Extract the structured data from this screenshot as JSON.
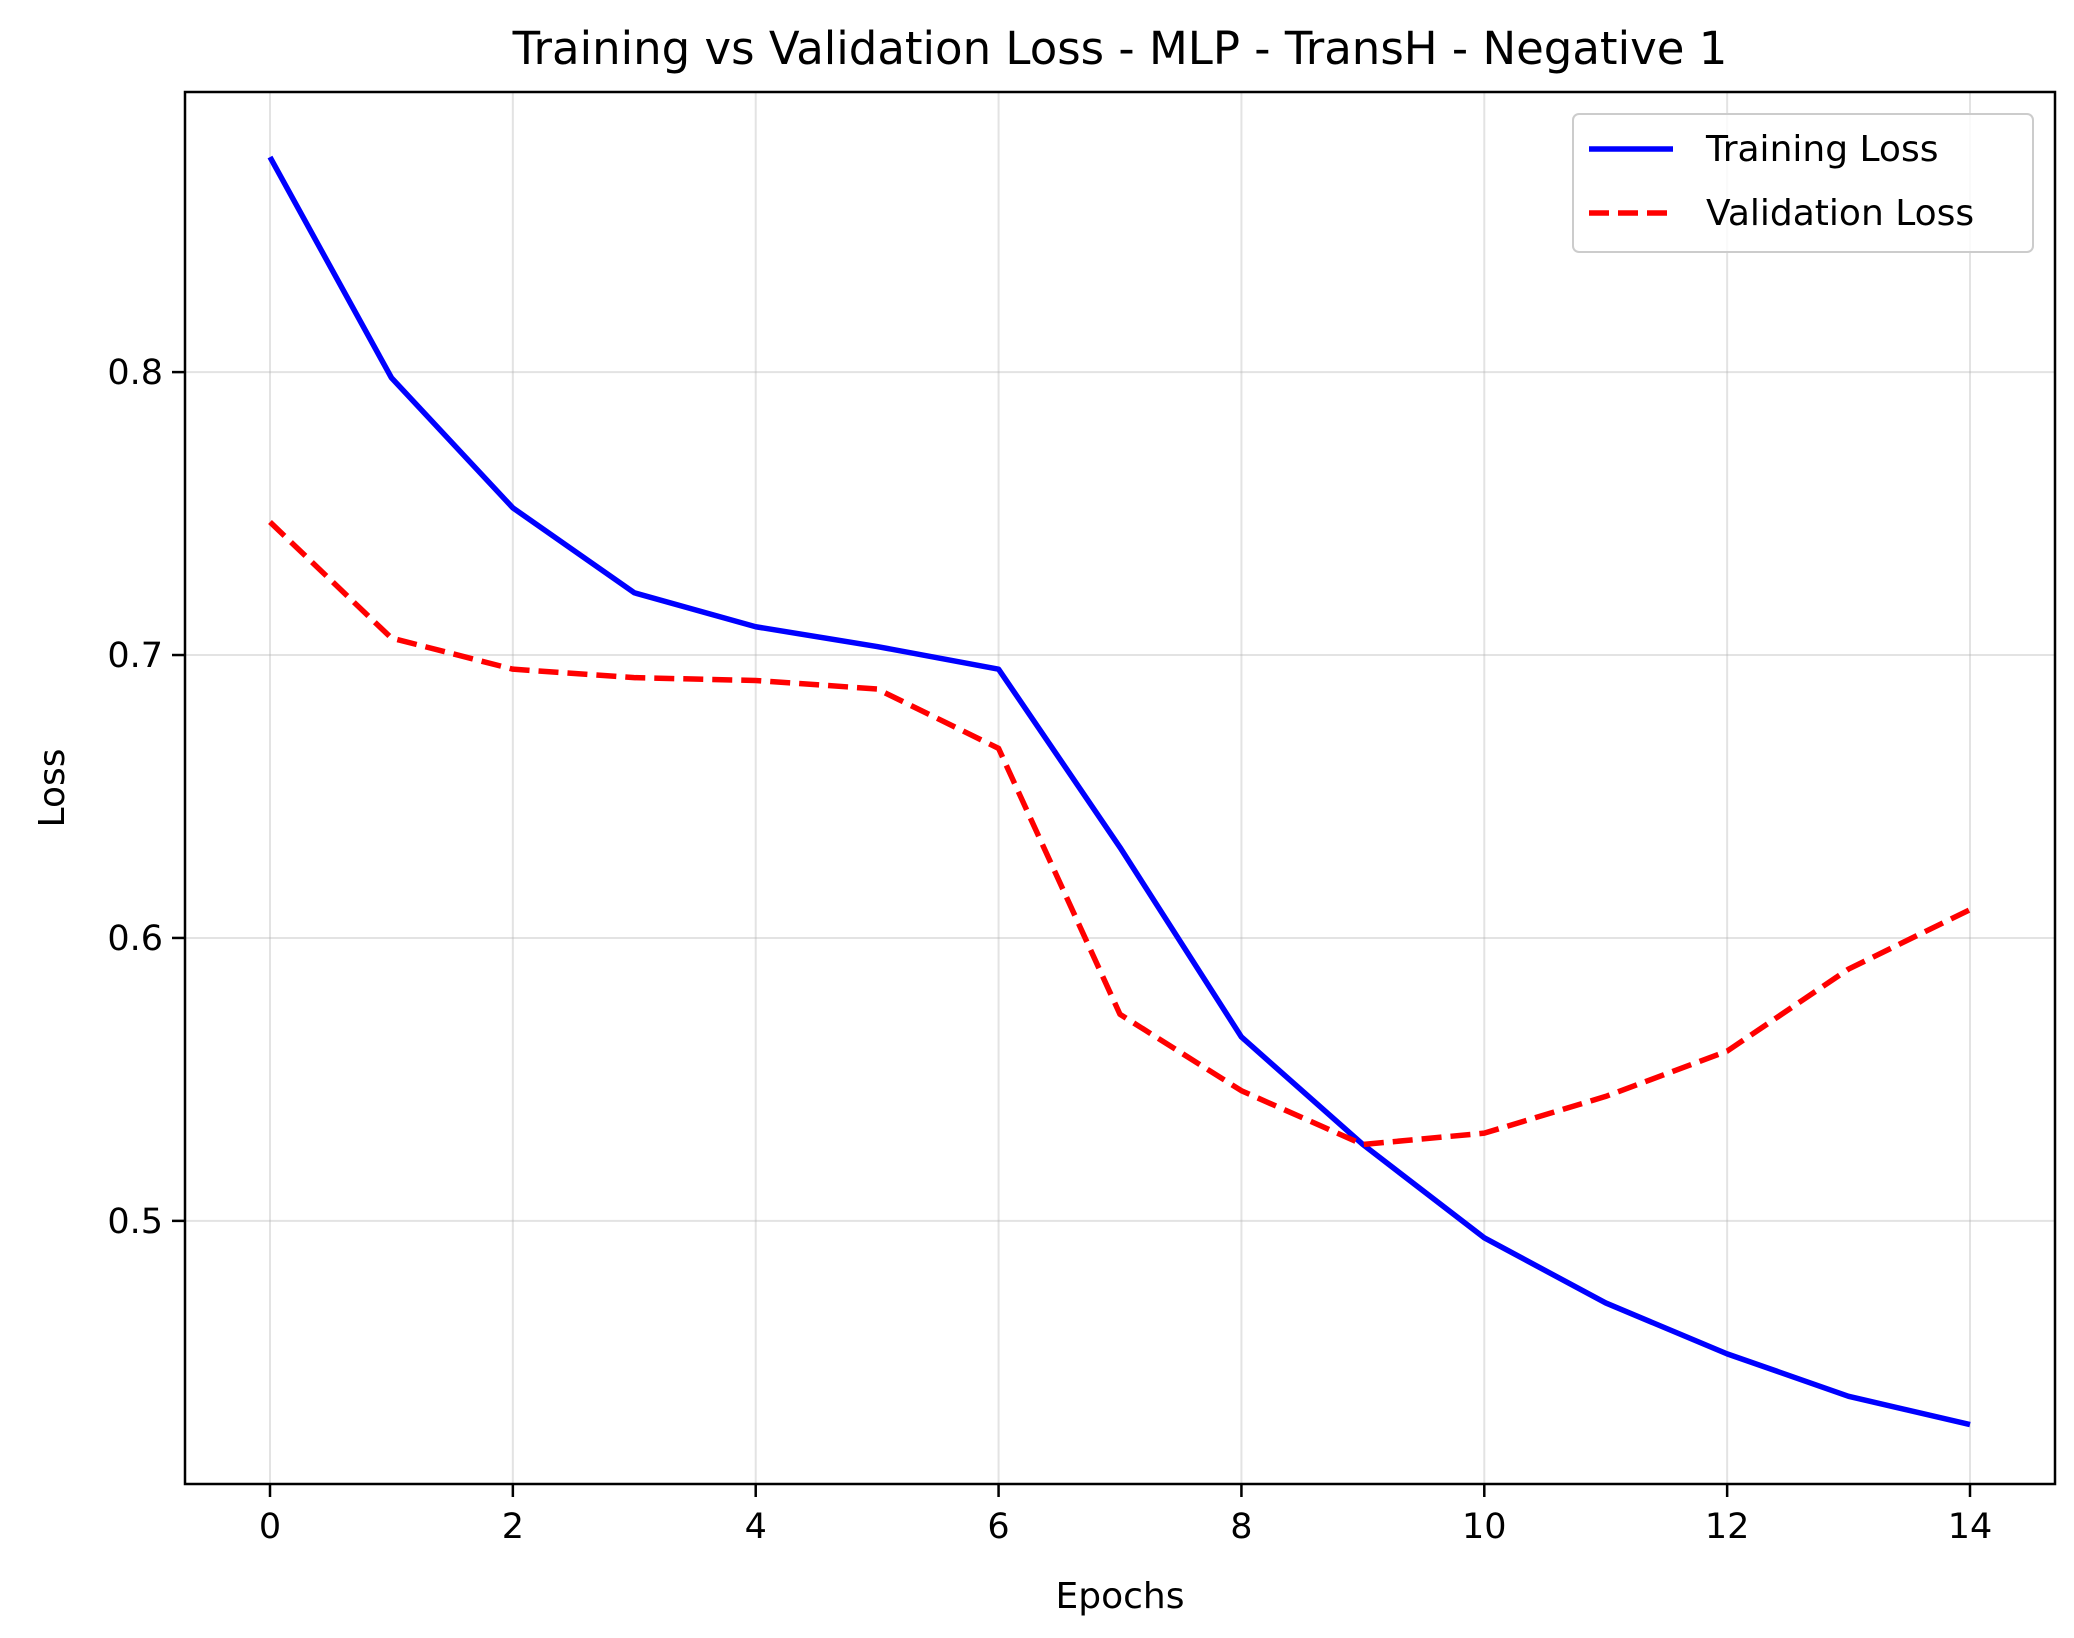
{
  "chart_data": {
    "type": "line",
    "title": "Training vs Validation Loss - MLP - TransH - Negative 1",
    "xlabel": "Epochs",
    "ylabel": "Loss",
    "x": [
      0,
      1,
      2,
      3,
      4,
      5,
      6,
      7,
      8,
      9,
      10,
      11,
      12,
      13,
      14
    ],
    "xlim": [
      -0.7,
      14.7
    ],
    "ylim": [
      0.407,
      0.899
    ],
    "xticks": [
      0,
      2,
      4,
      6,
      8,
      10,
      12,
      14
    ],
    "xtick_labels": [
      "0",
      "2",
      "4",
      "6",
      "8",
      "10",
      "12",
      "14"
    ],
    "yticks": [
      0.5,
      0.6,
      0.7,
      0.8
    ],
    "ytick_labels": [
      "0.5",
      "0.6",
      "0.7",
      "0.8"
    ],
    "grid": true,
    "legend_position": "top-right",
    "series": [
      {
        "name": "Training Loss",
        "color": "#0000ff",
        "style": "solid",
        "values": [
          0.876,
          0.798,
          0.752,
          0.722,
          0.71,
          0.703,
          0.695,
          0.632,
          0.565,
          0.527,
          0.494,
          0.471,
          0.453,
          0.438,
          0.428
        ]
      },
      {
        "name": "Validation Loss",
        "color": "#ff0000",
        "style": "dashed",
        "values": [
          0.747,
          0.706,
          0.695,
          0.692,
          0.691,
          0.688,
          0.667,
          0.573,
          0.546,
          0.527,
          0.531,
          0.544,
          0.56,
          0.589,
          0.61
        ]
      }
    ]
  }
}
